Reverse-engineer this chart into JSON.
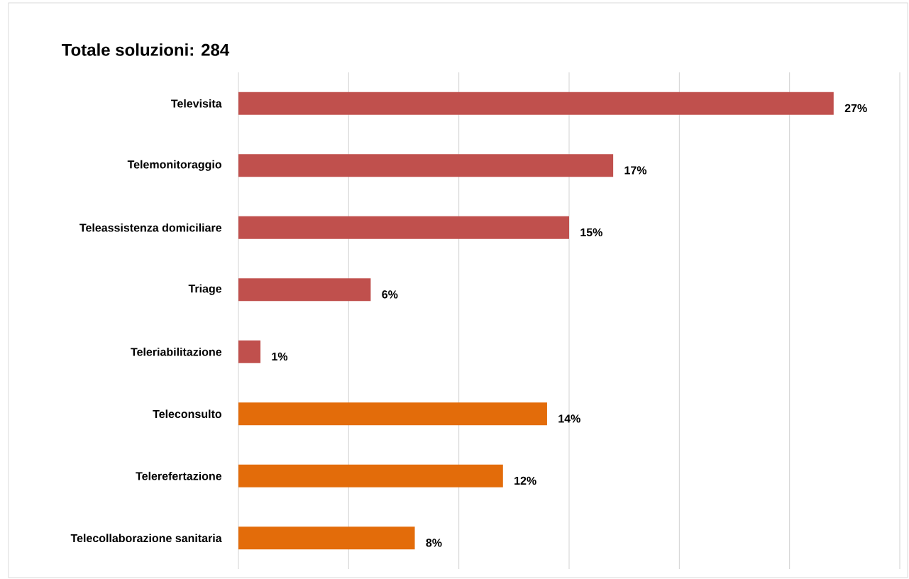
{
  "chart_data": {
    "type": "bar",
    "orientation": "horizontal",
    "title": "Totale soluzioni: 284",
    "categories": [
      "Televisita",
      "Telemonitoraggio",
      "Teleassistenza domiciliare",
      "Triage",
      "Teleriabilitazione",
      "Teleconsulto",
      "Telerefertazione",
      "Telecollaborazione sanitaria"
    ],
    "values": [
      27,
      17,
      15,
      6,
      1,
      14,
      12,
      8
    ],
    "colors": [
      "#c0504d",
      "#c0504d",
      "#c0504d",
      "#c0504d",
      "#c0504d",
      "#e36c0a",
      "#e36c0a",
      "#e36c0a"
    ],
    "value_labels": [
      "27%",
      "17%",
      "15%",
      "6%",
      "1%",
      "14%",
      "12%",
      "8%"
    ],
    "xlim": [
      0,
      30
    ],
    "xticks": [
      {
        "value": 0,
        "label": null
      },
      {
        "value": 5,
        "label": null
      },
      {
        "value": 10,
        "label": null
      },
      {
        "value": 15,
        "label": null
      },
      {
        "value": 20,
        "label": null
      },
      {
        "value": 25,
        "label": null
      },
      {
        "value": 30,
        "label": null
      }
    ],
    "grid": "x",
    "tick_labels": "y"
  }
}
